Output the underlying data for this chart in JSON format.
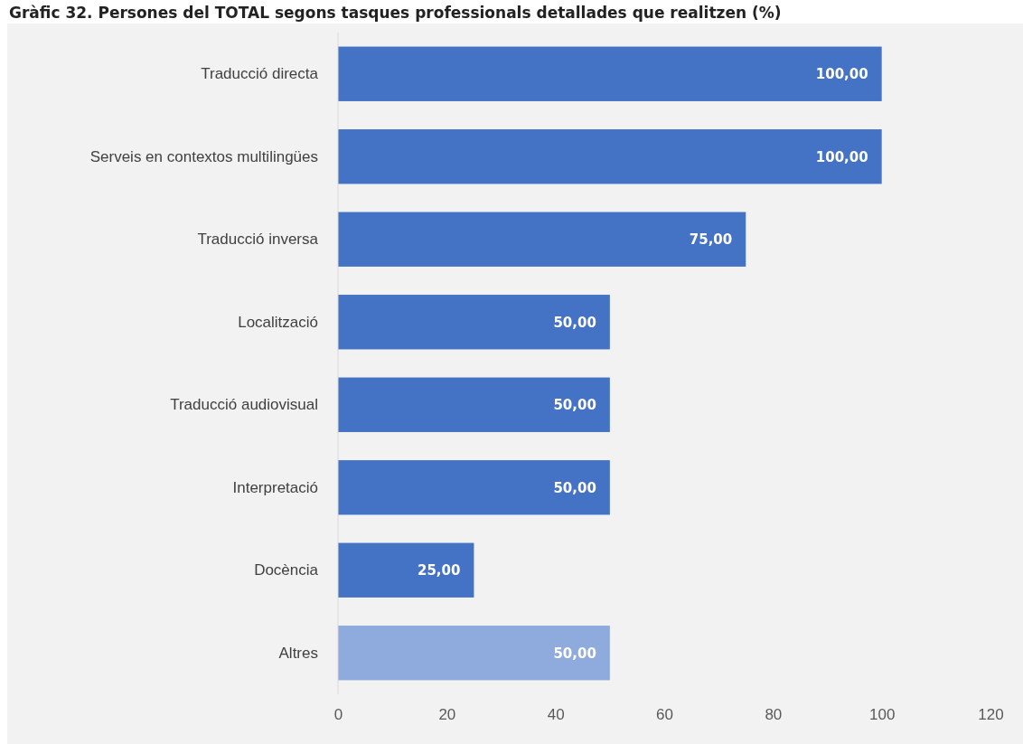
{
  "chart_data": {
    "type": "bar",
    "orientation": "horizontal",
    "title": "Gràfic 32. Persones del TOTAL segons tasques professionals detallades que realitzen (%)",
    "categories": [
      "Traducció directa",
      "Serveis en contextos multilingües",
      "Traducció inversa",
      "Localització",
      "Traducció audiovisual",
      "Interpretació",
      "Docència",
      "Altres"
    ],
    "values": [
      100,
      100,
      75,
      50,
      50,
      50,
      25,
      50
    ],
    "value_labels": [
      "100,00",
      "100,00",
      "75,00",
      "50,00",
      "50,00",
      "50,00",
      "25,00",
      "50,00"
    ],
    "colors": [
      "#4472c4",
      "#4472c4",
      "#4472c4",
      "#4472c4",
      "#4472c4",
      "#4472c4",
      "#4472c4",
      "#8faadc"
    ],
    "xlim": [
      0,
      120
    ],
    "xticks": [
      0,
      20,
      40,
      60,
      80,
      100,
      120
    ],
    "grid": false
  }
}
